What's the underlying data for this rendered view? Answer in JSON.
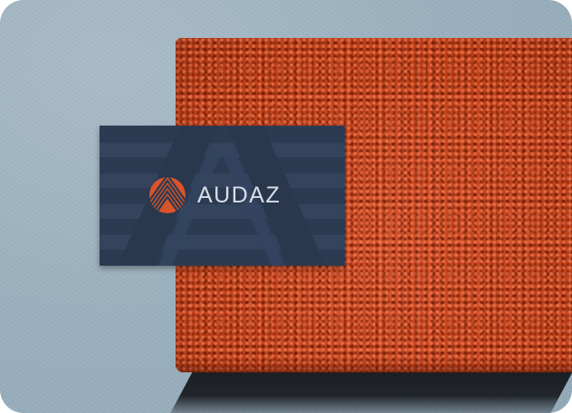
{
  "scene": {
    "description_colors": {
      "wall": "#9cb1bf",
      "brick": "#c8461f",
      "card": "#2c3b52",
      "logo_accent": "#d9532b",
      "wordmark": "#d9dfe6"
    }
  },
  "card": {
    "brand_name": "AUDAZ",
    "logo_icon": "striped-circle-chevron-icon"
  }
}
